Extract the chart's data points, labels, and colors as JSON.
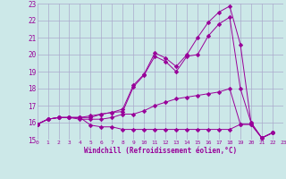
{
  "background_color": "#cce8e8",
  "grid_color": "#aaaacc",
  "line_color": "#990099",
  "xlabel": "Windchill (Refroidissement éolien,°C)",
  "tick_color": "#990099",
  "ylim": [
    15,
    23
  ],
  "xlim": [
    0,
    23
  ],
  "yticks": [
    15,
    16,
    17,
    18,
    19,
    20,
    21,
    22,
    23
  ],
  "xticks": [
    0,
    1,
    2,
    3,
    4,
    5,
    6,
    7,
    8,
    9,
    10,
    11,
    12,
    13,
    14,
    15,
    16,
    17,
    18,
    19,
    20,
    21,
    22,
    23
  ],
  "series": [
    [
      15.9,
      16.2,
      16.3,
      16.3,
      16.3,
      15.85,
      15.75,
      15.75,
      15.6,
      15.6,
      15.6,
      15.6,
      15.6,
      15.6,
      15.6,
      15.6,
      15.6,
      15.6,
      15.6,
      15.9,
      15.9,
      15.1,
      15.4
    ],
    [
      15.9,
      16.2,
      16.3,
      16.3,
      16.2,
      16.2,
      16.2,
      16.3,
      16.5,
      16.5,
      16.7,
      17.0,
      17.2,
      17.4,
      17.5,
      17.6,
      17.7,
      17.8,
      18.0,
      15.9,
      15.9,
      15.1,
      15.4
    ],
    [
      15.9,
      16.2,
      16.3,
      16.3,
      16.3,
      16.3,
      16.5,
      16.6,
      16.65,
      18.1,
      18.8,
      19.9,
      19.6,
      19.0,
      19.9,
      20.0,
      21.1,
      21.8,
      22.2,
      18.0,
      16.0,
      15.1,
      15.4
    ],
    [
      15.9,
      16.2,
      16.3,
      16.3,
      16.3,
      16.4,
      16.5,
      16.6,
      16.8,
      18.2,
      18.85,
      20.1,
      19.8,
      19.3,
      20.0,
      21.0,
      21.9,
      22.5,
      22.85,
      20.6,
      16.0,
      15.1,
      15.4
    ]
  ]
}
